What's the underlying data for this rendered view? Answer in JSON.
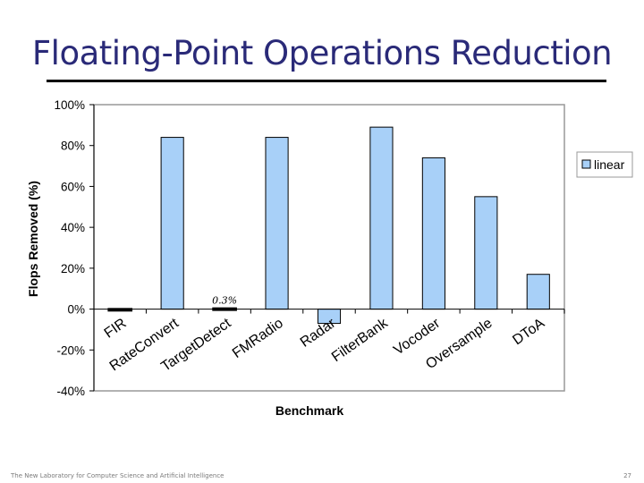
{
  "slide": {
    "title": "Floating-Point Operations Reduction",
    "footer_left": "The New Laboratory for Computer Science and Artificial Intelligence",
    "page_number": "27"
  },
  "chart_data": {
    "type": "bar",
    "categories": [
      "FIR",
      "RateConvert",
      "TargetDetect",
      "FMRadio",
      "Radar",
      "FilterBank",
      "Vocoder",
      "Oversample",
      "DToA"
    ],
    "series": [
      {
        "name": "linear",
        "values": [
          0,
          84,
          0.3,
          84,
          -7,
          89,
          74,
          55,
          17
        ]
      }
    ],
    "xlabel": "Benchmark",
    "ylabel": "Flops Removed (%)",
    "ylim": [
      -40,
      100
    ],
    "yticks": [
      100,
      80,
      60,
      40,
      20,
      0,
      -20,
      -40
    ],
    "ytick_labels": [
      "100%",
      "80%",
      "60%",
      "40%",
      "20%",
      "0%",
      "-20%",
      "-40%"
    ],
    "annotations": [
      {
        "category": "TargetDetect",
        "text": "0.3%"
      }
    ],
    "legend_position": "right",
    "grid": false,
    "colors": {
      "bar_fill": "#a8d0f8",
      "bar_stroke": "#000000",
      "plot_border": "#999999"
    }
  }
}
